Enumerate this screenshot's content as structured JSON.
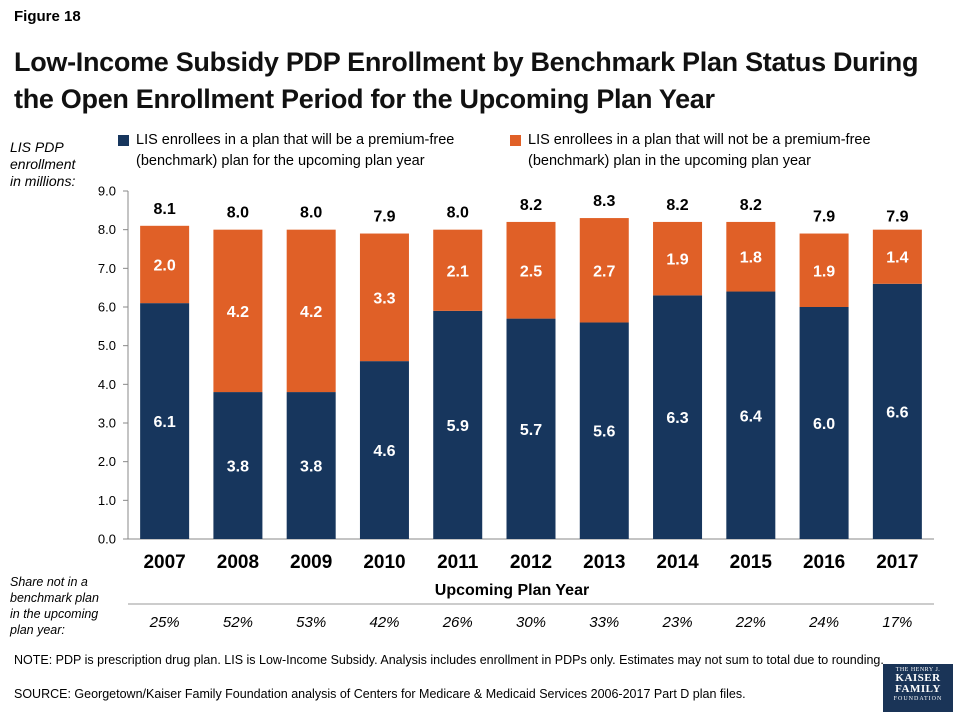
{
  "figure_label": "Figure 18",
  "title": "Low-Income Subsidy PDP Enrollment by Benchmark Plan Status During the Open Enrollment Period for the Upcoming Plan Year",
  "colors": {
    "benchmark": "#17365d",
    "non_benchmark": "#e06027",
    "axis": "#888888"
  },
  "share_label": "Share not in a\nbenchmark plan\nin the upcoming\nplan year:",
  "note": "NOTE: PDP is prescription drug plan. LIS is Low-Income Subsidy. Analysis includes enrollment in PDPs only. Estimates may not sum to total due to rounding.",
  "source": "SOURCE: Georgetown/Kaiser Family Foundation analysis of Centers for Medicare & Medicaid Services 2006-2017 Part D plan files.",
  "logo": {
    "line1": "THE HENRY J.",
    "line2": "KAISER",
    "line3": "FAMILY",
    "line4": "FOUNDATION"
  },
  "chart_data": {
    "type": "bar",
    "stacked": true,
    "categories": [
      "2007",
      "2008",
      "2009",
      "2010",
      "2011",
      "2012",
      "2013",
      "2014",
      "2015",
      "2016",
      "2017"
    ],
    "series": [
      {
        "name": "LIS enrollees in a plan that will be a premium-free (benchmark) plan for the upcoming plan year",
        "values": [
          6.1,
          3.8,
          3.8,
          4.6,
          5.9,
          5.7,
          5.6,
          6.3,
          6.4,
          6.0,
          6.6
        ]
      },
      {
        "name": "LIS enrollees in a plan that will not be a premium-free (benchmark) plan in the upcoming plan year",
        "values": [
          2.0,
          4.2,
          4.2,
          3.3,
          2.1,
          2.5,
          2.7,
          1.9,
          1.8,
          1.9,
          1.4
        ]
      }
    ],
    "bottom_labels": [
      "6.1",
      "3.8",
      "3.8",
      "4.6",
      "5.9",
      "5.7",
      "5.6",
      "6.3",
      "6.4",
      "6.0",
      "6.6"
    ],
    "top_labels": [
      "2.0",
      "4.2",
      "4.2",
      "3.3",
      "2.1",
      "2.5",
      "2.7",
      "1.9",
      "1.8",
      "1.9",
      "1.4"
    ],
    "totals": [
      8.1,
      8.0,
      8.0,
      7.9,
      8.0,
      8.2,
      8.3,
      8.2,
      8.2,
      7.9,
      7.9
    ],
    "total_labels": [
      "8.1",
      "8.0",
      "8.0",
      "7.9",
      "8.0",
      "8.2",
      "8.3",
      "8.2",
      "8.2",
      "7.9",
      "7.9"
    ],
    "shares": [
      "25%",
      "52%",
      "53%",
      "42%",
      "26%",
      "30%",
      "33%",
      "23%",
      "22%",
      "24%",
      "17%"
    ],
    "ylabel": "LIS PDP\nenrollment\nin millions:",
    "xlabel": "Upcoming Plan Year",
    "ylim": [
      0,
      9
    ],
    "yticks": [
      "0.0",
      "1.0",
      "2.0",
      "3.0",
      "4.0",
      "5.0",
      "6.0",
      "7.0",
      "8.0",
      "9.0"
    ],
    "grid": false,
    "legend_position": "top"
  }
}
